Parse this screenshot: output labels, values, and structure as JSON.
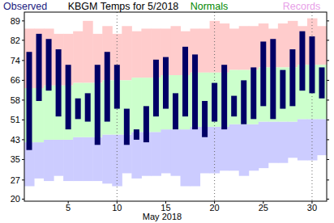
{
  "chart_data": {
    "type": "range_bar",
    "title": "KBGM Temps for 5/2018",
    "x_label": "May 2018",
    "x": [
      1,
      2,
      3,
      4,
      5,
      6,
      7,
      8,
      9,
      10,
      11,
      12,
      13,
      14,
      15,
      16,
      17,
      18,
      19,
      20,
      21,
      22,
      23,
      24,
      25,
      26,
      27,
      28,
      29,
      30,
      31
    ],
    "xlim": [
      0.5,
      31.5
    ],
    "xticks": [
      5,
      10,
      15,
      20,
      25,
      30
    ],
    "ylim": [
      19.2,
      92.4
    ],
    "yticks": [
      20,
      {
        "value": 27.4,
        "label": "27"
      },
      {
        "value": 35.33,
        "label": "35"
      },
      43,
      {
        "value": 50.67,
        "label": "51"
      },
      {
        "value": 58.33,
        "label": "58"
      },
      66,
      {
        "value": 73.67,
        "label": "74"
      },
      {
        "value": 81.5,
        "label": "82"
      },
      89
    ],
    "grid": true,
    "series": [
      {
        "name": "Records",
        "type": "band",
        "colors": [
          "#ffcccc",
          "#ccccff"
        ],
        "high": [
          86,
          86,
          86,
          84,
          84,
          85,
          89,
          84,
          87,
          84,
          87,
          85,
          86,
          86,
          86,
          87,
          85,
          86,
          86,
          89,
          88,
          86,
          87,
          87,
          88,
          86,
          88,
          89,
          87,
          90,
          87
        ],
        "low": [
          25,
          28,
          27,
          29,
          27,
          27,
          27,
          27,
          26,
          25,
          30,
          28,
          29,
          29,
          30,
          29,
          25,
          25,
          30,
          30,
          31,
          31,
          29,
          31,
          32,
          34,
          34,
          36,
          35,
          35,
          37
        ]
      },
      {
        "name": "Normals",
        "type": "band",
        "color": "#ccffcc",
        "high": [
          63,
          63,
          64,
          64,
          64,
          65,
          65,
          65,
          66,
          66,
          66,
          67,
          67,
          67,
          68,
          68,
          68,
          69,
          69,
          69,
          69,
          70,
          70,
          70,
          71,
          71,
          71,
          71,
          72,
          72,
          72
        ],
        "low": [
          42,
          42,
          43,
          43,
          43,
          44,
          44,
          44,
          45,
          45,
          45,
          46,
          46,
          46,
          47,
          47,
          47,
          48,
          48,
          48,
          48,
          49,
          49,
          49,
          50,
          50,
          50,
          50,
          51,
          51,
          51
        ]
      },
      {
        "name": "Observed",
        "type": "range_bar",
        "color": "#000066",
        "high": [
          77,
          84,
          82,
          78,
          72,
          59,
          61,
          72,
          77,
          72,
          55,
          47,
          56,
          74,
          75,
          61,
          79,
          76,
          58,
          65,
          72,
          60,
          66,
          71,
          81,
          82,
          70,
          78,
          85,
          83,
          71
        ],
        "low": [
          39,
          58,
          62,
          52,
          47,
          51,
          50,
          41,
          50,
          55,
          41,
          43,
          42,
          52,
          55,
          47,
          52,
          47,
          44,
          50,
          47,
          52,
          49,
          51,
          56,
          51,
          55,
          56,
          62,
          61,
          59
        ]
      }
    ]
  }
}
